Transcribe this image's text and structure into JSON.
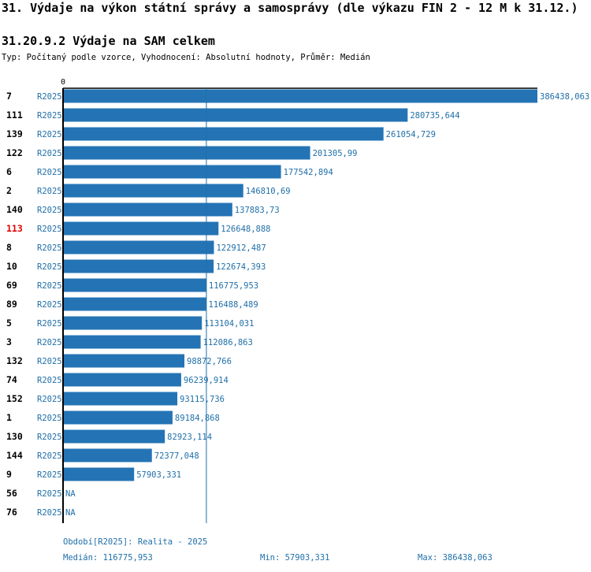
{
  "page_title": "31. Výdaje na výkon státní správy a samosprávy (dle výkazu FIN 2 - 12 M k 31.12.)",
  "section_title": "31.20.9.2 Výdaje na SAM celkem",
  "subtitle": "Typ: Počítaný podle vzorce, Vyhodnocení: Absolutní hodnoty, Průměr: Medián",
  "colors": {
    "bar": "#2474b5",
    "label": "#1f6fa8",
    "highlight": "#e00000",
    "axis": "#000000"
  },
  "chart_data": {
    "type": "bar",
    "orientation": "horizontal",
    "x_zero_label": "0",
    "xlim": [
      0,
      386438.063
    ],
    "highlight_id": "113",
    "median_value": 116775.953,
    "rows": [
      {
        "id": "7",
        "period": "R2025",
        "value": 386438.063,
        "label": "386438,063"
      },
      {
        "id": "111",
        "period": "R2025",
        "value": 280735.644,
        "label": "280735,644"
      },
      {
        "id": "139",
        "period": "R2025",
        "value": 261054.729,
        "label": "261054,729"
      },
      {
        "id": "122",
        "period": "R2025",
        "value": 201305.99,
        "label": "201305,99"
      },
      {
        "id": "6",
        "period": "R2025",
        "value": 177542.894,
        "label": "177542,894"
      },
      {
        "id": "2",
        "period": "R2025",
        "value": 146810.69,
        "label": "146810,69"
      },
      {
        "id": "140",
        "period": "R2025",
        "value": 137883.73,
        "label": "137883,73"
      },
      {
        "id": "113",
        "period": "R2025",
        "value": 126648.888,
        "label": "126648,888"
      },
      {
        "id": "8",
        "period": "R2025",
        "value": 122912.487,
        "label": "122912,487"
      },
      {
        "id": "10",
        "period": "R2025",
        "value": 122674.393,
        "label": "122674,393"
      },
      {
        "id": "69",
        "period": "R2025",
        "value": 116775.953,
        "label": "116775,953"
      },
      {
        "id": "89",
        "period": "R2025",
        "value": 116488.489,
        "label": "116488,489"
      },
      {
        "id": "5",
        "period": "R2025",
        "value": 113104.031,
        "label": "113104,031"
      },
      {
        "id": "3",
        "period": "R2025",
        "value": 112086.863,
        "label": "112086,863"
      },
      {
        "id": "132",
        "period": "R2025",
        "value": 98872.766,
        "label": "98872,766"
      },
      {
        "id": "74",
        "period": "R2025",
        "value": 96239.914,
        "label": "96239,914"
      },
      {
        "id": "152",
        "period": "R2025",
        "value": 93115.736,
        "label": "93115,736"
      },
      {
        "id": "1",
        "period": "R2025",
        "value": 89184.868,
        "label": "89184,868"
      },
      {
        "id": "130",
        "period": "R2025",
        "value": 82923.114,
        "label": "82923,114"
      },
      {
        "id": "144",
        "period": "R2025",
        "value": 72377.048,
        "label": "72377,048"
      },
      {
        "id": "9",
        "period": "R2025",
        "value": 57903.331,
        "label": "57903,331"
      },
      {
        "id": "56",
        "period": "R2025",
        "value": null,
        "label": "NA"
      },
      {
        "id": "76",
        "period": "R2025",
        "value": null,
        "label": "NA"
      }
    ]
  },
  "footer": {
    "period": "Období[R2025]: Realita - 2025",
    "median": "Medián: 116775,953",
    "min": "Min: 57903,331",
    "max": "Max: 386438,063"
  }
}
